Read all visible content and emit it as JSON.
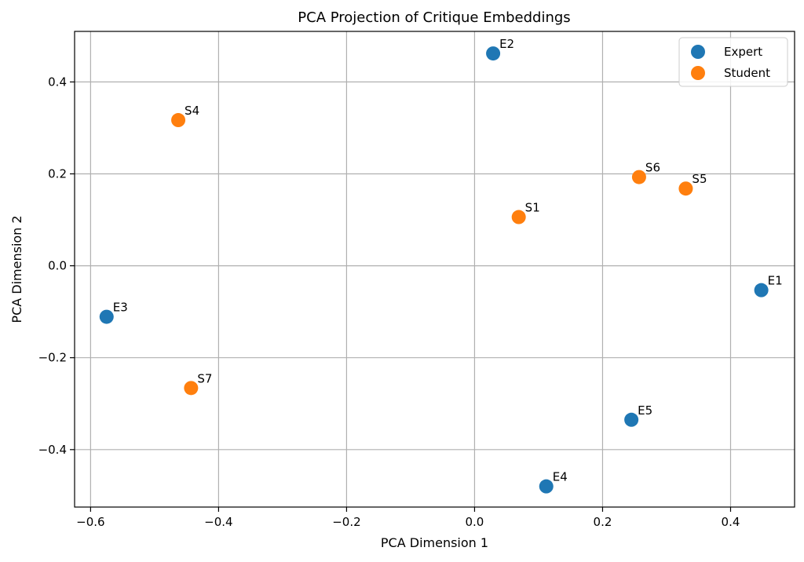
{
  "chart_data": {
    "type": "scatter",
    "title": "PCA Projection of Critique Embeddings",
    "xlabel": "PCA Dimension 1",
    "ylabel": "PCA Dimension 2",
    "xlim": [
      -0.625,
      0.5
    ],
    "ylim": [
      -0.525,
      0.51
    ],
    "xticks": [
      -0.6,
      -0.4,
      -0.2,
      0.0,
      0.2,
      0.4
    ],
    "yticks": [
      -0.4,
      -0.2,
      0.0,
      0.2,
      0.4
    ],
    "xtick_labels": [
      "−0.6",
      "−0.4",
      "−0.2",
      "0.0",
      "0.2",
      "0.4"
    ],
    "ytick_labels": [
      "−0.4",
      "−0.2",
      "0.0",
      "0.2",
      "0.4"
    ],
    "grid": true,
    "legend_position": "top-right",
    "series": [
      {
        "name": "Expert",
        "color": "#1f77b4",
        "points": [
          {
            "label": "E1",
            "x": 0.448,
            "y": -0.053
          },
          {
            "label": "E2",
            "x": 0.029,
            "y": 0.462
          },
          {
            "label": "E3",
            "x": -0.575,
            "y": -0.111
          },
          {
            "label": "E4",
            "x": 0.112,
            "y": -0.48
          },
          {
            "label": "E5",
            "x": 0.245,
            "y": -0.335
          }
        ]
      },
      {
        "name": "Student",
        "color": "#ff7f0e",
        "points": [
          {
            "label": "S1",
            "x": 0.069,
            "y": 0.106
          },
          {
            "label": "S4",
            "x": -0.463,
            "y": 0.317
          },
          {
            "label": "S5",
            "x": 0.33,
            "y": 0.168
          },
          {
            "label": "S6",
            "x": 0.257,
            "y": 0.193
          },
          {
            "label": "S7",
            "x": -0.443,
            "y": -0.266
          }
        ]
      }
    ]
  }
}
